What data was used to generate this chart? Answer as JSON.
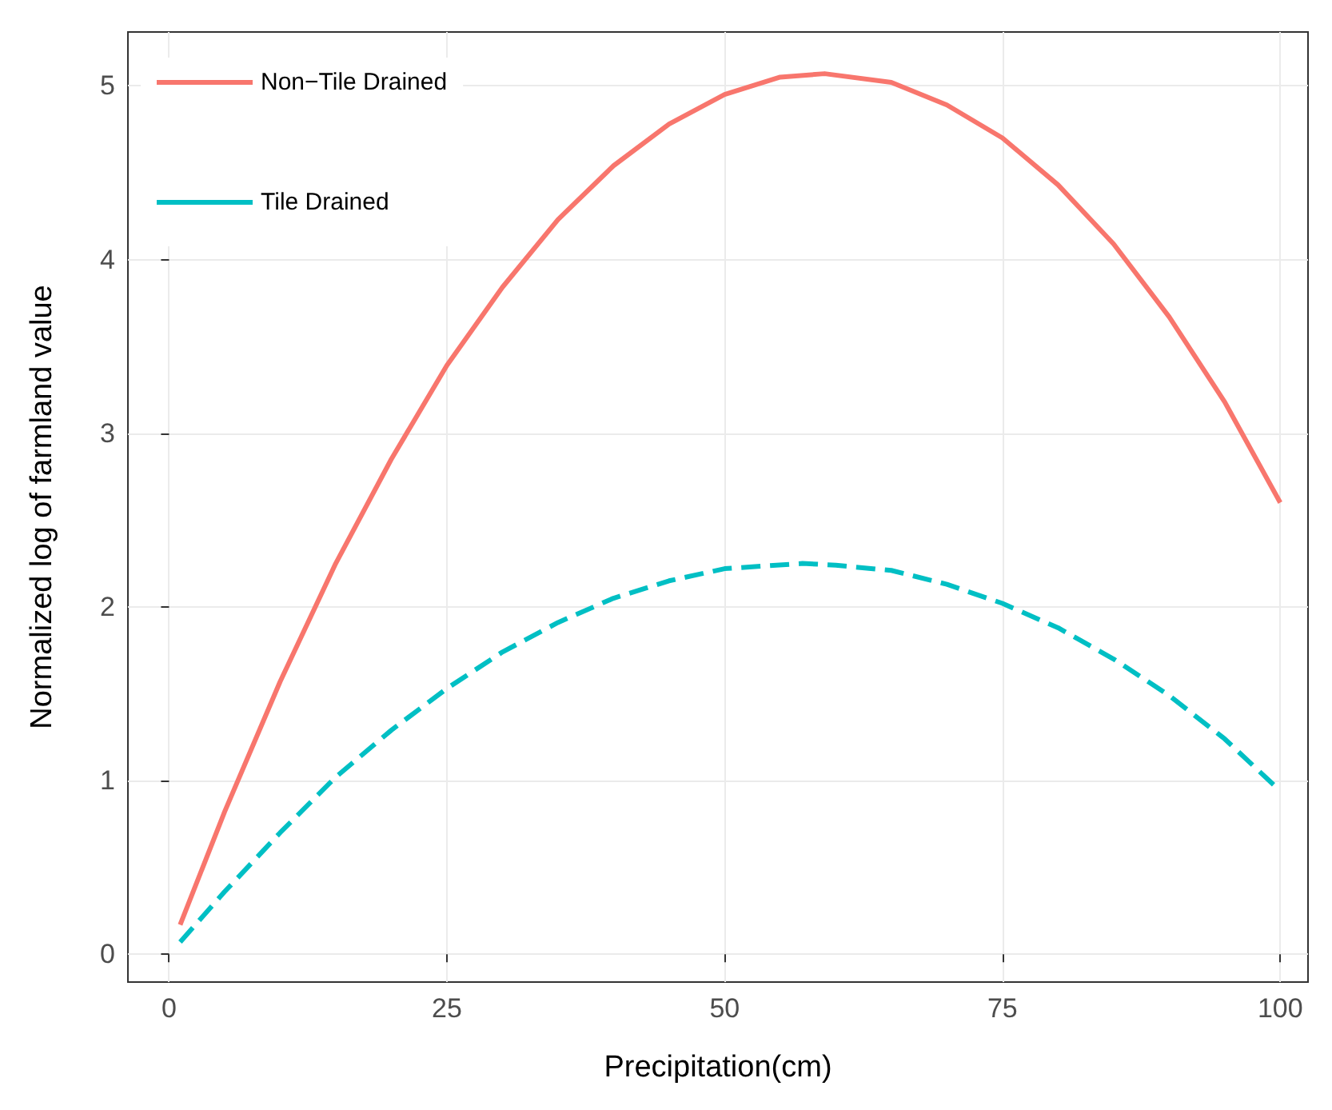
{
  "chart_data": {
    "type": "line",
    "xlabel": "Precipitation(cm)",
    "ylabel": "Normalized log of farmland value",
    "xlim": [
      -3.7,
      102.5
    ],
    "xticks": [
      0,
      25,
      50,
      75,
      100
    ],
    "ylim": [
      -0.16,
      5.31
    ],
    "yticks": [
      0,
      1,
      2,
      3,
      4,
      5
    ],
    "grid": true,
    "legend": "top left",
    "marker": "none",
    "series": [
      {
        "name": "Non−Tile Drained",
        "color": "#f8766d",
        "line_style": "solid",
        "x": [
          1,
          5,
          10,
          15,
          20,
          25,
          30,
          35,
          40,
          45,
          50,
          55,
          59,
          65,
          70,
          75,
          80,
          85,
          90,
          95,
          100
        ],
        "values": [
          0.17,
          0.82,
          1.57,
          2.25,
          2.85,
          3.39,
          3.84,
          4.23,
          4.54,
          4.78,
          4.95,
          5.05,
          5.07,
          5.02,
          4.89,
          4.7,
          4.43,
          4.09,
          3.67,
          3.18,
          2.6
        ]
      },
      {
        "name": "Tile Drained",
        "color": "#00bfc4",
        "line_style": "dashed",
        "x": [
          1,
          5,
          10,
          15,
          20,
          25,
          30,
          35,
          40,
          45,
          50,
          57,
          60,
          65,
          70,
          75,
          80,
          85,
          90,
          95,
          100
        ],
        "values": [
          0.07,
          0.36,
          0.7,
          1.02,
          1.29,
          1.53,
          1.74,
          1.91,
          2.05,
          2.15,
          2.22,
          2.25,
          2.24,
          2.21,
          2.13,
          2.02,
          1.88,
          1.7,
          1.49,
          1.24,
          0.94
        ]
      }
    ]
  }
}
